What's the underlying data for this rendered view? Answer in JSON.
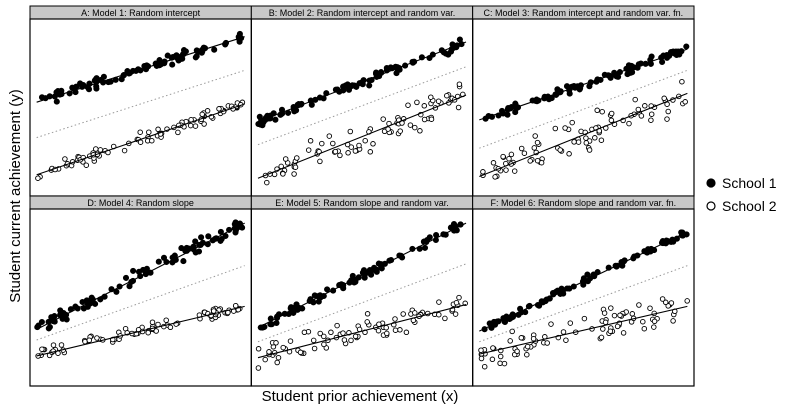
{
  "figure": {
    "ylabel": "Student current achievement (y)",
    "xlabel": "Student prior achievement (x)",
    "legend": {
      "placement": "right",
      "entries": [
        {
          "label": "School 1",
          "marker": "filled-circle"
        },
        {
          "label": "School 2",
          "marker": "open-circle"
        }
      ]
    },
    "colors": {
      "strip": "#c8c8c8",
      "ink": "#000000",
      "dotted": "#9a9a9a"
    }
  },
  "chart_data": [
    {
      "type": "scatter",
      "title": "A: Model 1: Random intercept",
      "xlim": [
        0,
        1
      ],
      "ylim": [
        0,
        1
      ],
      "series": [
        {
          "name": "School 1",
          "line": [
            [
              0.03,
              0.53
            ],
            [
              0.97,
              0.9
            ]
          ],
          "spread": 0.025,
          "n": 90
        },
        {
          "name": "School 2",
          "line": [
            [
              0.03,
              0.12
            ],
            [
              0.97,
              0.52
            ]
          ],
          "spread": 0.03,
          "n": 85
        }
      ],
      "reference_line": [
        [
          0.03,
          0.33
        ],
        [
          0.97,
          0.71
        ]
      ]
    },
    {
      "type": "scatter",
      "title": "B: Model 2: Random intercept and random var.",
      "xlim": [
        0,
        1
      ],
      "ylim": [
        0,
        1
      ],
      "series": [
        {
          "name": "School 1",
          "line": [
            [
              0.03,
              0.42
            ],
            [
              0.97,
              0.87
            ]
          ],
          "spread": 0.025,
          "n": 90
        },
        {
          "name": "School 2",
          "line": [
            [
              0.03,
              0.1
            ],
            [
              0.97,
              0.57
            ]
          ],
          "spread": 0.07,
          "n": 85
        }
      ],
      "reference_line": [
        [
          0.03,
          0.29
        ],
        [
          0.97,
          0.73
        ]
      ]
    },
    {
      "type": "scatter",
      "title": "C: Model 3: Random intercept and random var. fn.",
      "xlim": [
        0,
        1
      ],
      "ylim": [
        0,
        1
      ],
      "series": [
        {
          "name": "School 1",
          "line": [
            [
              0.03,
              0.43
            ],
            [
              0.97,
              0.83
            ]
          ],
          "spread": 0.02,
          "n": 90
        },
        {
          "name": "School 2",
          "line": [
            [
              0.03,
              0.11
            ],
            [
              0.97,
              0.58
            ]
          ],
          "spread": 0.08,
          "n": 85
        }
      ],
      "reference_line": [
        [
          0.03,
          0.27
        ],
        [
          0.97,
          0.71
        ]
      ]
    },
    {
      "type": "scatter",
      "title": "D: Model 4: Random slope",
      "xlim": [
        0,
        1
      ],
      "ylim": [
        0,
        1
      ],
      "series": [
        {
          "name": "School 1",
          "line": [
            [
              0.03,
              0.32
            ],
            [
              0.97,
              0.92
            ]
          ],
          "spread": 0.035,
          "n": 90
        },
        {
          "name": "School 2",
          "line": [
            [
              0.03,
              0.17
            ],
            [
              0.97,
              0.45
            ]
          ],
          "spread": 0.03,
          "n": 85
        }
      ],
      "reference_line": [
        [
          0.03,
          0.26
        ],
        [
          0.97,
          0.68
        ]
      ]
    },
    {
      "type": "scatter",
      "title": "E: Model 5: Random slope and random var.",
      "xlim": [
        0,
        1
      ],
      "ylim": [
        0,
        1
      ],
      "series": [
        {
          "name": "School 1",
          "line": [
            [
              0.03,
              0.33
            ],
            [
              0.97,
              0.92
            ]
          ],
          "spread": 0.025,
          "n": 90
        },
        {
          "name": "School 2",
          "line": [
            [
              0.03,
              0.16
            ],
            [
              0.97,
              0.46
            ]
          ],
          "spread": 0.06,
          "n": 85
        }
      ],
      "reference_line": [
        [
          0.03,
          0.25
        ],
        [
          0.97,
          0.69
        ]
      ]
    },
    {
      "type": "scatter",
      "title": "F: Model 6: Random slope and random var. fn.",
      "xlim": [
        0,
        1
      ],
      "ylim": [
        0,
        1
      ],
      "series": [
        {
          "name": "School 1",
          "line": [
            [
              0.03,
              0.31
            ],
            [
              0.97,
              0.87
            ]
          ],
          "spread": 0.02,
          "n": 90
        },
        {
          "name": "School 2",
          "line": [
            [
              0.03,
              0.18
            ],
            [
              0.97,
              0.45
            ]
          ],
          "spread": 0.07,
          "n": 85
        }
      ],
      "reference_line": [
        [
          0.03,
          0.25
        ],
        [
          0.97,
          0.68
        ]
      ]
    }
  ]
}
